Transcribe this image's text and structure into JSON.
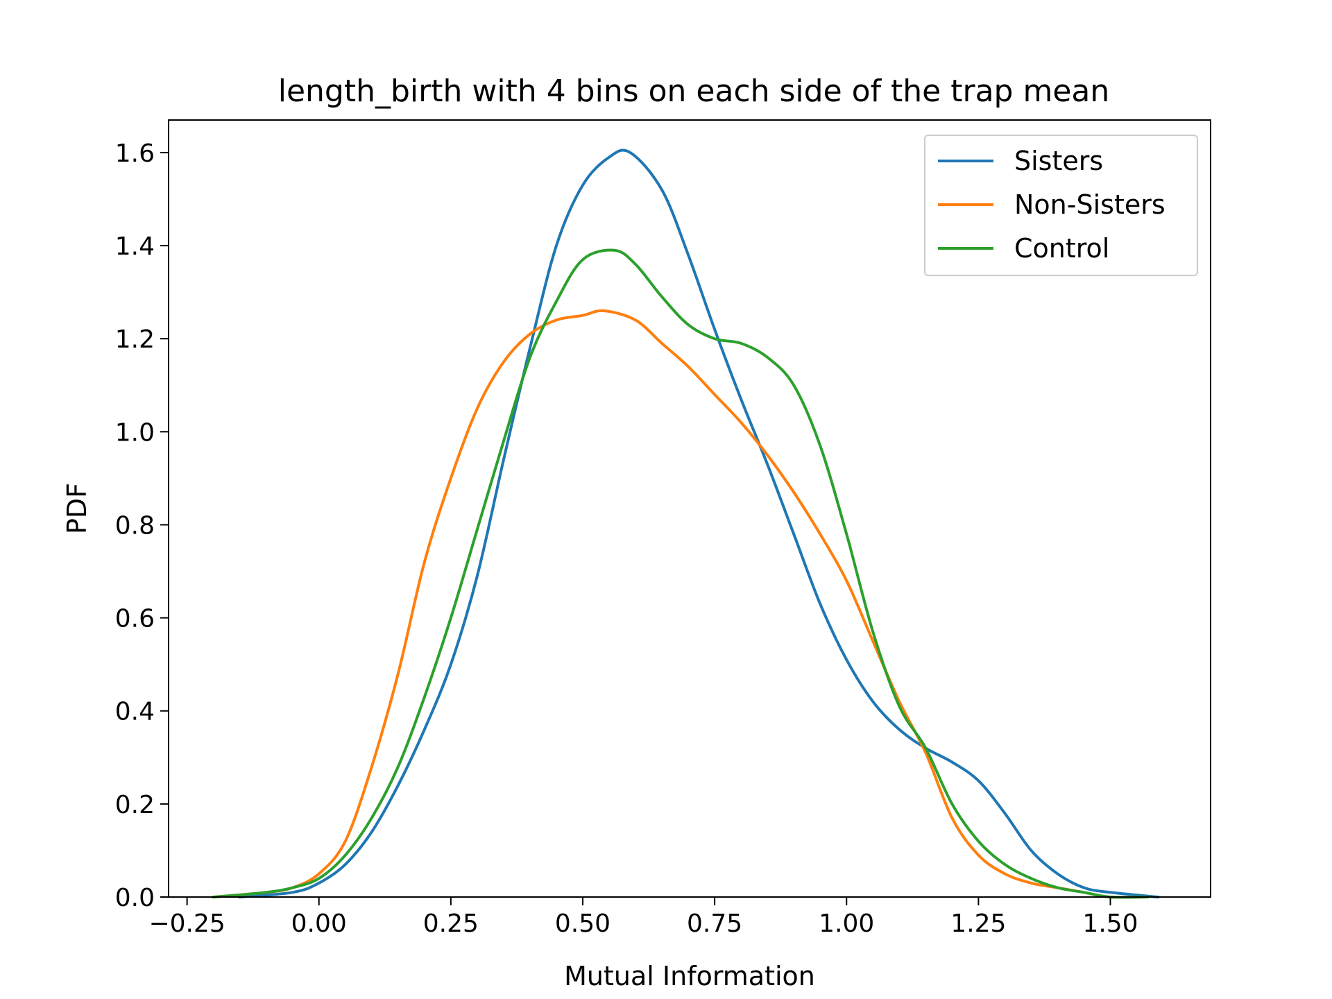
{
  "chart_data": {
    "type": "line",
    "title": "length_birth with 4 bins on each side of the trap mean",
    "xlabel": "Mutual Information",
    "ylabel": "PDF",
    "xlim": [
      -0.285,
      1.69
    ],
    "ylim": [
      0.0,
      1.67
    ],
    "xticks": [
      -0.25,
      0.0,
      0.25,
      0.5,
      0.75,
      1.0,
      1.25,
      1.5
    ],
    "xtick_labels": [
      "−0.25",
      "0.00",
      "0.25",
      "0.50",
      "0.75",
      "1.00",
      "1.25",
      "1.50"
    ],
    "yticks": [
      0.0,
      0.2,
      0.4,
      0.6,
      0.8,
      1.0,
      1.2,
      1.4,
      1.6
    ],
    "ytick_labels": [
      "0.0",
      "0.2",
      "0.4",
      "0.6",
      "0.8",
      "1.0",
      "1.2",
      "1.4",
      "1.6"
    ],
    "grid": false,
    "legend_position": "upper right",
    "series": [
      {
        "name": "Sisters",
        "color": "#1f77b4",
        "x": [
          -0.15,
          -0.05,
          0.0,
          0.05,
          0.1,
          0.15,
          0.2,
          0.25,
          0.3,
          0.35,
          0.4,
          0.45,
          0.5,
          0.55,
          0.59,
          0.65,
          0.7,
          0.75,
          0.8,
          0.85,
          0.9,
          0.95,
          1.0,
          1.05,
          1.1,
          1.15,
          1.2,
          1.25,
          1.3,
          1.35,
          1.4,
          1.45,
          1.5,
          1.59
        ],
        "y": [
          0.0,
          0.01,
          0.03,
          0.07,
          0.14,
          0.24,
          0.36,
          0.5,
          0.69,
          0.94,
          1.18,
          1.4,
          1.53,
          1.59,
          1.6,
          1.52,
          1.38,
          1.22,
          1.07,
          0.93,
          0.78,
          0.63,
          0.51,
          0.42,
          0.36,
          0.32,
          0.29,
          0.25,
          0.18,
          0.1,
          0.05,
          0.02,
          0.01,
          0.0
        ]
      },
      {
        "name": "Non-Sisters",
        "color": "#ff7f0e",
        "x": [
          -0.2,
          -0.1,
          -0.05,
          0.0,
          0.05,
          0.1,
          0.15,
          0.2,
          0.25,
          0.3,
          0.35,
          0.4,
          0.45,
          0.5,
          0.54,
          0.6,
          0.65,
          0.7,
          0.75,
          0.8,
          0.85,
          0.9,
          0.95,
          1.0,
          1.05,
          1.1,
          1.15,
          1.2,
          1.25,
          1.3,
          1.35,
          1.4,
          1.45,
          1.5,
          1.57
        ],
        "y": [
          0.0,
          0.01,
          0.02,
          0.05,
          0.12,
          0.28,
          0.48,
          0.72,
          0.9,
          1.05,
          1.15,
          1.21,
          1.24,
          1.25,
          1.26,
          1.24,
          1.19,
          1.14,
          1.08,
          1.02,
          0.95,
          0.87,
          0.78,
          0.68,
          0.55,
          0.42,
          0.31,
          0.17,
          0.09,
          0.05,
          0.03,
          0.02,
          0.01,
          0.0,
          0.0
        ]
      },
      {
        "name": "Control",
        "color": "#2ca02c",
        "x": [
          -0.2,
          -0.1,
          -0.05,
          0.0,
          0.05,
          0.1,
          0.15,
          0.2,
          0.25,
          0.3,
          0.35,
          0.4,
          0.45,
          0.5,
          0.56,
          0.6,
          0.65,
          0.7,
          0.75,
          0.8,
          0.85,
          0.9,
          0.95,
          1.0,
          1.05,
          1.1,
          1.15,
          1.2,
          1.25,
          1.3,
          1.35,
          1.4,
          1.45,
          1.5,
          1.57
        ],
        "y": [
          0.0,
          0.01,
          0.02,
          0.04,
          0.09,
          0.17,
          0.28,
          0.43,
          0.6,
          0.79,
          0.98,
          1.16,
          1.28,
          1.37,
          1.39,
          1.36,
          1.29,
          1.23,
          1.2,
          1.19,
          1.16,
          1.1,
          0.97,
          0.78,
          0.57,
          0.41,
          0.32,
          0.2,
          0.12,
          0.07,
          0.04,
          0.02,
          0.01,
          0.0,
          0.0
        ]
      }
    ]
  }
}
